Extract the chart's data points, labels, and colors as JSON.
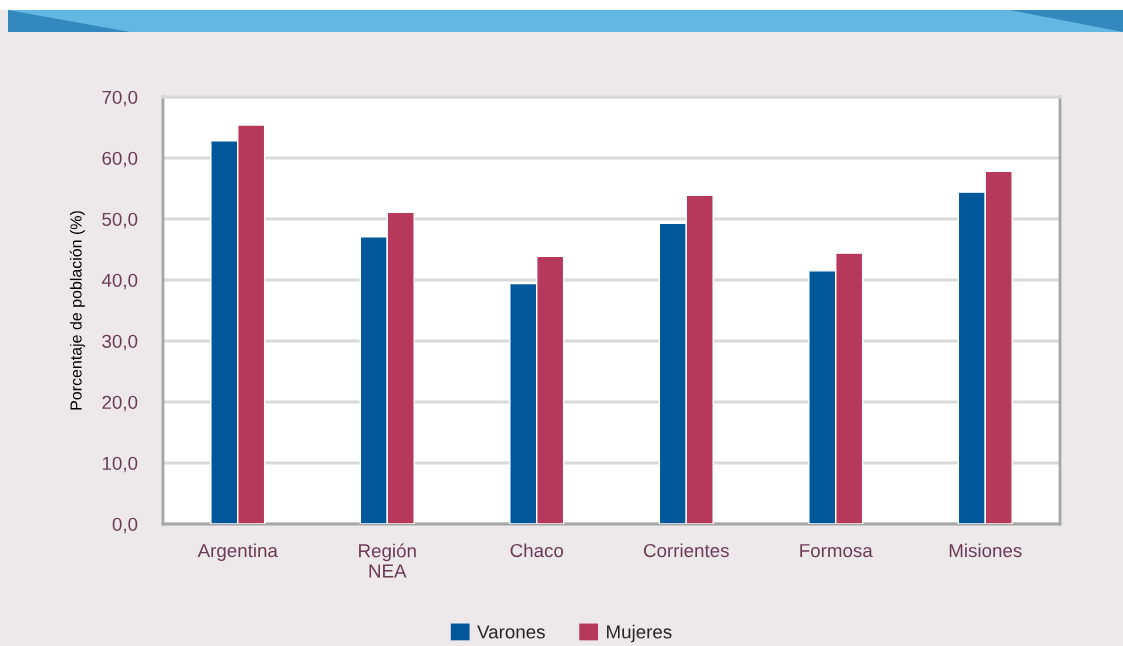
{
  "chart_data": {
    "type": "bar",
    "ylabel": "Porcentaje de población (%)",
    "categories": [
      "Argentina",
      "Región\nNEA",
      "Chaco",
      "Corrientes",
      "Formosa",
      "Misiones"
    ],
    "series": [
      {
        "name": "Varones",
        "color": "#00579a",
        "values": [
          62.8,
          47.1,
          39.4,
          49.3,
          41.5,
          54.4
        ]
      },
      {
        "name": "Mujeres",
        "color": "#b6385a",
        "values": [
          65.4,
          51.1,
          43.9,
          53.9,
          44.4,
          57.8
        ]
      }
    ],
    "ylim": [
      0,
      70
    ],
    "yticks": [
      {
        "value": 0,
        "label": "0,0"
      },
      {
        "value": 10,
        "label": "10,0"
      },
      {
        "value": 20,
        "label": "20,0"
      },
      {
        "value": 30,
        "label": "30,0"
      },
      {
        "value": 40,
        "label": "40,0"
      },
      {
        "value": 50,
        "label": "50,0"
      },
      {
        "value": 60,
        "label": "60,0"
      },
      {
        "value": 70,
        "label": "70,0"
      }
    ],
    "grid": "y",
    "legend": "bottom"
  }
}
